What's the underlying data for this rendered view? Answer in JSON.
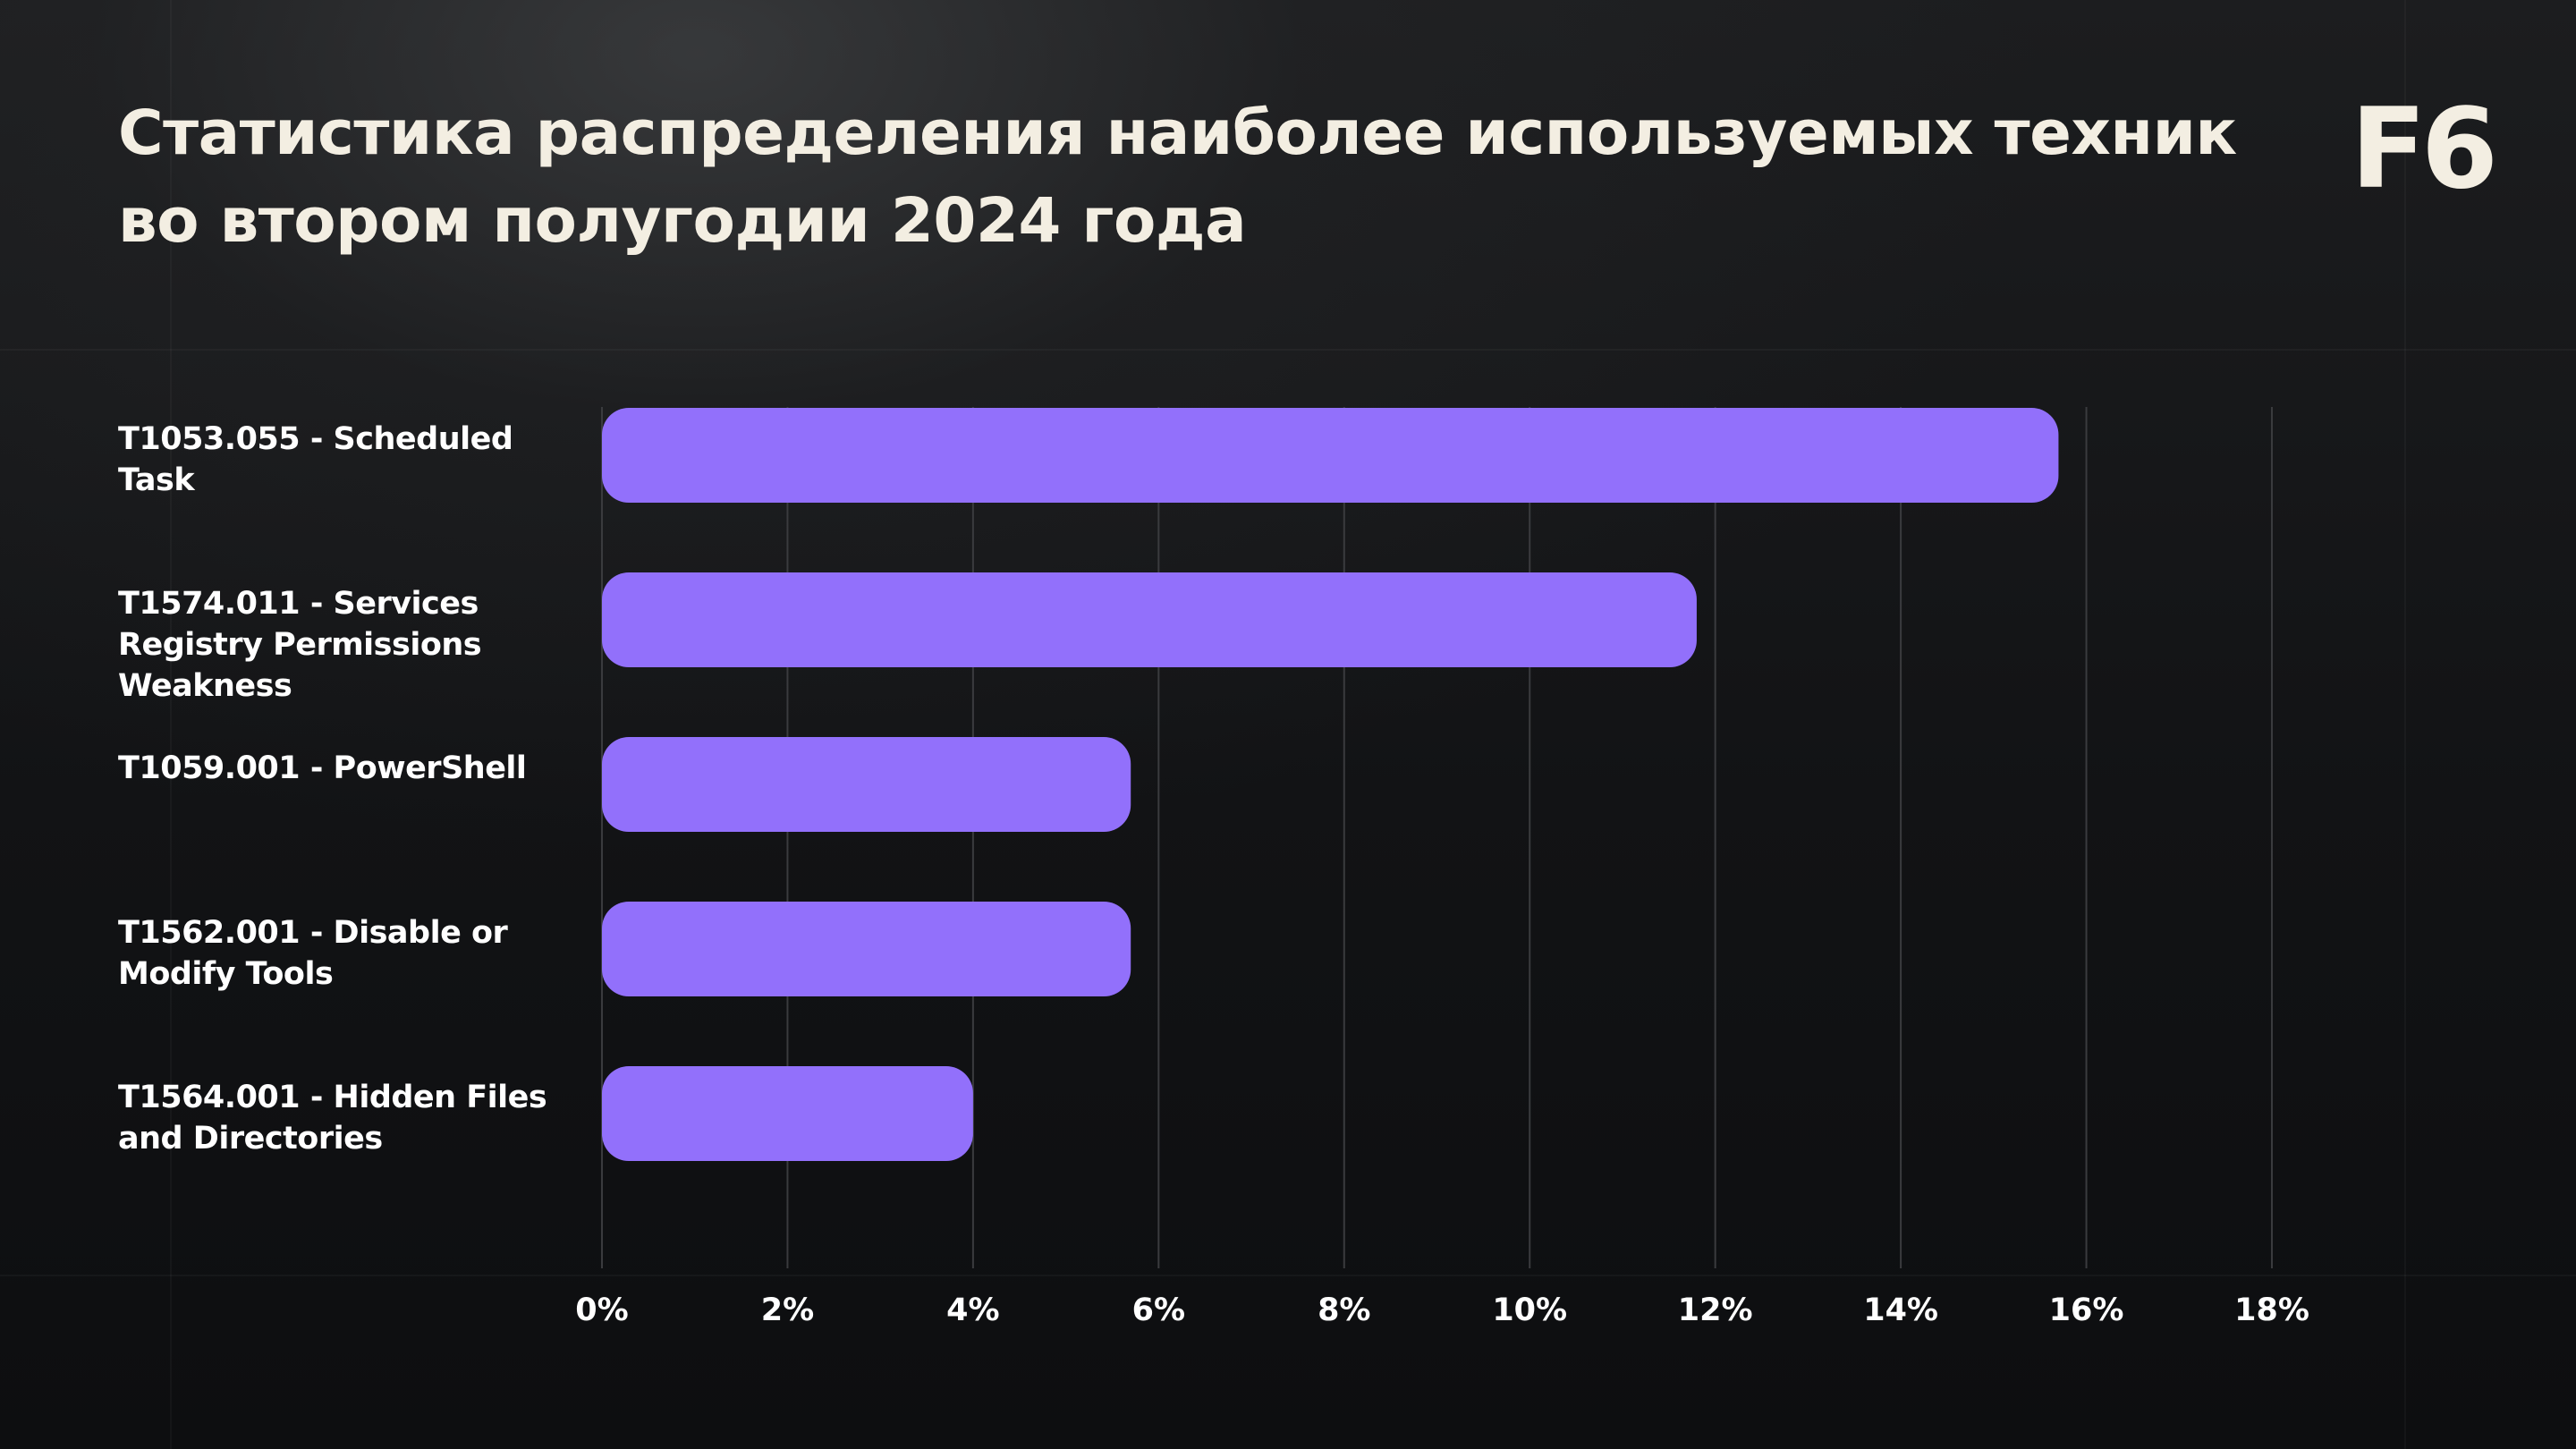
{
  "title": "Статистика распределения наиболее используемых техник во втором полугодии 2024 года",
  "logo": "F6",
  "colors": {
    "bar": "#9270fb",
    "text": "#f3eee2",
    "grid": "#3a3b3e",
    "background": "#131416"
  },
  "chart_data": {
    "type": "bar",
    "orientation": "horizontal",
    "title": "Статистика распределения наиболее используемых техник во втором полугодии 2024 года",
    "categories": [
      "T1053.055 - Scheduled Task",
      "T1574.011 - Services Registry Permissions Weakness",
      "T1059.001 - PowerShell",
      "T1562.001 - Disable or Modify Tools",
      "T1564.001 - Hidden Files and Directories"
    ],
    "values": [
      15.7,
      11.8,
      5.7,
      5.7,
      4.0
    ],
    "unit": "%",
    "xlim": [
      0,
      18
    ],
    "xticks": [
      0,
      2,
      4,
      6,
      8,
      10,
      12,
      14,
      16,
      18
    ],
    "xtick_labels": [
      "0%",
      "2%",
      "4%",
      "6%",
      "8%",
      "10%",
      "12%",
      "14%",
      "16%",
      "18%"
    ],
    "grid": true,
    "legend": "none"
  }
}
